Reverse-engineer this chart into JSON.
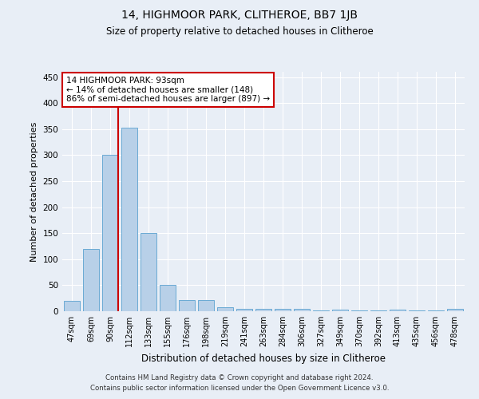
{
  "title1": "14, HIGHMOOR PARK, CLITHEROE, BB7 1JB",
  "title2": "Size of property relative to detached houses in Clitheroe",
  "xlabel": "Distribution of detached houses by size in Clitheroe",
  "ylabel": "Number of detached properties",
  "categories": [
    "47sqm",
    "69sqm",
    "90sqm",
    "112sqm",
    "133sqm",
    "155sqm",
    "176sqm",
    "198sqm",
    "219sqm",
    "241sqm",
    "263sqm",
    "284sqm",
    "306sqm",
    "327sqm",
    "349sqm",
    "370sqm",
    "392sqm",
    "413sqm",
    "435sqm",
    "456sqm",
    "478sqm"
  ],
  "values": [
    20,
    120,
    300,
    352,
    150,
    50,
    22,
    22,
    8,
    5,
    5,
    5,
    5,
    1,
    3,
    1,
    1,
    3,
    1,
    1,
    5
  ],
  "bar_color": "#b8d0e8",
  "bar_edge_color": "#6aaad4",
  "background_color": "#e8eef6",
  "grid_color": "#ffffff",
  "red_line_index": 2,
  "annotation_text": "14 HIGHMOOR PARK: 93sqm\n← 14% of detached houses are smaller (148)\n86% of semi-detached houses are larger (897) →",
  "annotation_box_color": "#ffffff",
  "annotation_box_edge": "#cc0000",
  "ylim": [
    0,
    460
  ],
  "yticks": [
    0,
    50,
    100,
    150,
    200,
    250,
    300,
    350,
    400,
    450
  ],
  "footer1": "Contains HM Land Registry data © Crown copyright and database right 2024.",
  "footer2": "Contains public sector information licensed under the Open Government Licence v3.0."
}
